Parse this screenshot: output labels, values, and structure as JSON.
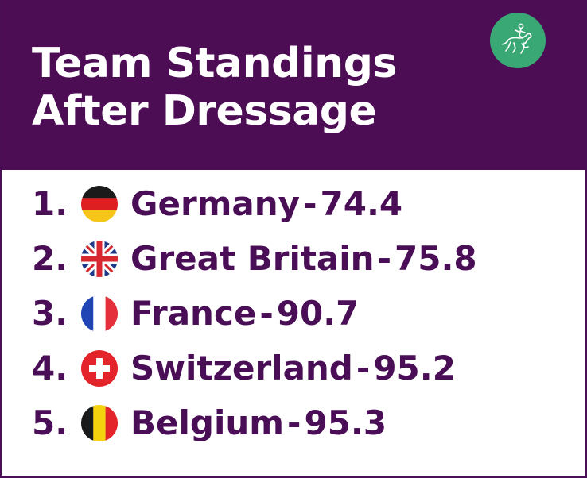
{
  "header": {
    "title_line1": "Team Standings",
    "title_line2": "After Dressage",
    "logo_icon": "dressage-rider-icon",
    "background": "#4c0d55",
    "logo_color": "#3aa874"
  },
  "standings": [
    {
      "rank": "1.",
      "flag_icon": "germany-flag-icon",
      "country": "Germany",
      "separator": " - ",
      "score": "74.4"
    },
    {
      "rank": "2.",
      "flag_icon": "great-britain-flag-icon",
      "country": "Great Britain",
      "separator": " - ",
      "score": "75.8"
    },
    {
      "rank": "3.",
      "flag_icon": "france-flag-icon",
      "country": "France",
      "separator": "- ",
      "score": "90.7"
    },
    {
      "rank": "4.",
      "flag_icon": "switzerland-flag-icon",
      "country": "Switzerland",
      "separator": " - ",
      "score": "95.2"
    },
    {
      "rank": "5.",
      "flag_icon": "belgium-flag-icon",
      "country": "Belgium",
      "separator": " - ",
      "score": "95.3"
    }
  ],
  "text_color": "#4a0e57"
}
